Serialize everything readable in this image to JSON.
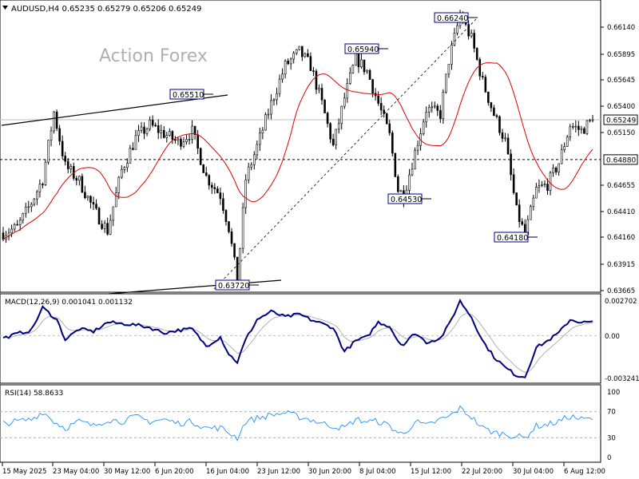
{
  "header": {
    "symbol_info": "AUDUSD,H4  0.65235 0.65279 0.65206 0.65249",
    "watermark": "Action Forex"
  },
  "chart_data": [
    {
      "type": "candlestick",
      "title": "AUDUSD,H4",
      "ohlc_last": {
        "open": 0.65235,
        "high": 0.65279,
        "low": 0.65206,
        "close": 0.65249
      },
      "y_ticks": [
        "0.66140",
        "0.65895",
        "0.65645",
        "0.65400",
        "0.65150",
        "0.64655",
        "0.64410",
        "0.64160",
        "0.63915",
        "0.63665"
      ],
      "ylim": [
        0.63665,
        0.66345
      ],
      "x_labels": [
        "15 May 2025",
        "23 May 04:00",
        "30 May 12:00",
        "6 Jun 20:00",
        "16 Jun 04:00",
        "23 Jun 12:00",
        "30 Jun 20:00",
        "8 Jul 04:00",
        "15 Jul 12:00",
        "22 Jul 20:00",
        "30 Jul 04:00",
        "6 Aug 12:00"
      ],
      "current_price": "0.65249",
      "horizontal_level": "0.64880",
      "annotations": [
        {
          "label": "0.65510",
          "value": 0.6551
        },
        {
          "label": "0.63720",
          "value": 0.6372
        },
        {
          "label": "0.65940",
          "value": 0.6594
        },
        {
          "label": "0.66240",
          "value": 0.6624
        },
        {
          "label": "0.64530",
          "value": 0.6453
        },
        {
          "label": "0.64180",
          "value": 0.6418
        }
      ],
      "anchors": [
        [
          0,
          0.642
        ],
        [
          5,
          0.6425
        ],
        [
          10,
          0.6448
        ],
        [
          14,
          0.647
        ],
        [
          18,
          0.6532
        ],
        [
          22,
          0.6482
        ],
        [
          27,
          0.6468
        ],
        [
          32,
          0.6442
        ],
        [
          37,
          0.6422
        ],
        [
          42,
          0.6478
        ],
        [
          47,
          0.6508
        ],
        [
          52,
          0.652
        ],
        [
          57,
          0.6512
        ],
        [
          62,
          0.6504
        ],
        [
          67,
          0.6514
        ],
        [
          72,
          0.6472
        ],
        [
          77,
          0.6455
        ],
        [
          80,
          0.6425
        ],
        [
          83,
          0.6375
        ],
        [
          86,
          0.647
        ],
        [
          90,
          0.65
        ],
        [
          95,
          0.654
        ],
        [
          100,
          0.6575
        ],
        [
          105,
          0.6588
        ],
        [
          109,
          0.6575
        ],
        [
          113,
          0.654
        ],
        [
          117,
          0.65
        ],
        [
          121,
          0.6545
        ],
        [
          125,
          0.6582
        ],
        [
          129,
          0.657
        ],
        [
          133,
          0.654
        ],
        [
          137,
          0.651
        ],
        [
          140,
          0.646
        ],
        [
          142,
          0.6455
        ],
        [
          146,
          0.6495
        ],
        [
          150,
          0.6535
        ],
        [
          155,
          0.653
        ],
        [
          158,
          0.658
        ],
        [
          162,
          0.6622
        ],
        [
          166,
          0.66
        ],
        [
          170,
          0.656
        ],
        [
          174,
          0.653
        ],
        [
          178,
          0.6505
        ],
        [
          182,
          0.644
        ],
        [
          185,
          0.6418
        ],
        [
          189,
          0.646
        ],
        [
          193,
          0.6465
        ],
        [
          197,
          0.6485
        ],
        [
          201,
          0.652
        ],
        [
          205,
          0.6515
        ],
        [
          209,
          0.6525
        ]
      ],
      "moving_average_color": "#e00000",
      "candle_color": "#000000"
    },
    {
      "type": "line",
      "title": "MACD(12,26,9) 0.001041 0.001132",
      "y_ticks": [
        "0.002702",
        "0.00",
        "-0.003241"
      ],
      "ylim": [
        -0.0034,
        0.0029
      ],
      "series": [
        {
          "name": "MACD",
          "color": "#000080"
        },
        {
          "name": "Signal",
          "color": "#a0a0a0"
        }
      ],
      "macd_anchors": [
        [
          0,
          -0.0002
        ],
        [
          6,
          0.0002
        ],
        [
          10,
          0.0004
        ],
        [
          14,
          0.0021
        ],
        [
          19,
          0.0012
        ],
        [
          22,
          -0.0003
        ],
        [
          27,
          0.0005
        ],
        [
          32,
          0.0003
        ],
        [
          37,
          0.001
        ],
        [
          42,
          0.0009
        ],
        [
          47,
          0.0008
        ],
        [
          52,
          0.0006
        ],
        [
          57,
          0.0002
        ],
        [
          62,
          0.0004
        ],
        [
          67,
          0.0005
        ],
        [
          72,
          -0.0008
        ],
        [
          77,
          -0.0001
        ],
        [
          80,
          -0.0014
        ],
        [
          83,
          -0.002
        ],
        [
          86,
          -0.0003
        ],
        [
          90,
          0.0012
        ],
        [
          95,
          0.0018
        ],
        [
          100,
          0.0014
        ],
        [
          105,
          0.0016
        ],
        [
          109,
          0.0012
        ],
        [
          113,
          0.0009
        ],
        [
          117,
          0.0006
        ],
        [
          121,
          -0.0012
        ],
        [
          125,
          -0.0004
        ],
        [
          129,
          -0.0001
        ],
        [
          133,
          0.001
        ],
        [
          137,
          0.0007
        ],
        [
          140,
          -0.0004
        ],
        [
          142,
          -0.0007
        ],
        [
          146,
          0.0002
        ],
        [
          150,
          -0.0005
        ],
        [
          155,
          -0.0002
        ],
        [
          158,
          0.0008
        ],
        [
          162,
          0.0026
        ],
        [
          166,
          0.0014
        ],
        [
          170,
          -0.0004
        ],
        [
          174,
          -0.0016
        ],
        [
          178,
          -0.0024
        ],
        [
          182,
          -0.003
        ],
        [
          185,
          -0.0031
        ],
        [
          189,
          -0.0009
        ],
        [
          193,
          -0.0004
        ],
        [
          197,
          0.0002
        ],
        [
          201,
          0.0012
        ],
        [
          205,
          0.001
        ],
        [
          209,
          0.001
        ]
      ]
    },
    {
      "type": "line",
      "title": "RSI(14) 58.8633",
      "y_ticks": [
        "100",
        "70",
        "30",
        "0"
      ],
      "ylim": [
        0,
        100
      ],
      "series": [
        {
          "name": "RSI",
          "color": "#1e90ff"
        }
      ],
      "rsi_anchors": [
        [
          0,
          52
        ],
        [
          5,
          55
        ],
        [
          10,
          58
        ],
        [
          14,
          70
        ],
        [
          18,
          55
        ],
        [
          22,
          45
        ],
        [
          27,
          55
        ],
        [
          32,
          48
        ],
        [
          37,
          58
        ],
        [
          42,
          55
        ],
        [
          47,
          62
        ],
        [
          52,
          55
        ],
        [
          57,
          58
        ],
        [
          62,
          52
        ],
        [
          67,
          55
        ],
        [
          72,
          45
        ],
        [
          77,
          45
        ],
        [
          80,
          38
        ],
        [
          83,
          30
        ],
        [
          86,
          55
        ],
        [
          90,
          60
        ],
        [
          95,
          65
        ],
        [
          100,
          68
        ],
        [
          105,
          62
        ],
        [
          109,
          58
        ],
        [
          113,
          52
        ],
        [
          117,
          48
        ],
        [
          121,
          45
        ],
        [
          125,
          58
        ],
        [
          129,
          55
        ],
        [
          133,
          55
        ],
        [
          137,
          48
        ],
        [
          140,
          38
        ],
        [
          142,
          35
        ],
        [
          146,
          55
        ],
        [
          150,
          48
        ],
        [
          155,
          58
        ],
        [
          158,
          62
        ],
        [
          162,
          75
        ],
        [
          166,
          62
        ],
        [
          170,
          45
        ],
        [
          174,
          38
        ],
        [
          178,
          36
        ],
        [
          182,
          32
        ],
        [
          185,
          30
        ],
        [
          189,
          48
        ],
        [
          193,
          50
        ],
        [
          197,
          55
        ],
        [
          201,
          63
        ],
        [
          205,
          58
        ],
        [
          209,
          59
        ]
      ]
    }
  ]
}
